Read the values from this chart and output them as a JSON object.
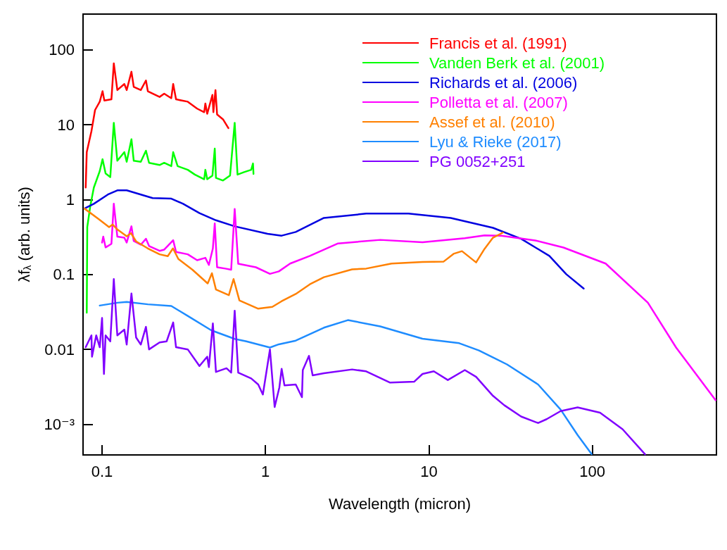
{
  "chart_data": {
    "type": "line",
    "xlabel": "Wavelength (micron)",
    "ylabel": "λf$_{λ}$ (arb. units)",
    "log": "xy",
    "grid": false,
    "legend": "top right",
    "marker": "none",
    "line_style": "solid",
    "xlim": [
      0.0765,
      575
    ],
    "ylim": [
      0.00039,
      300
    ],
    "xticks": [
      0.1,
      1,
      10,
      100
    ],
    "yticks": [
      {
        "value": 0.001,
        "label": "10⁻³"
      },
      0.01,
      0.1,
      1,
      10,
      100
    ],
    "series": [
      {
        "name": "Francis et al. (1991)",
        "color": "#ff0000",
        "x": [
          0.0794,
          0.0806,
          0.0861,
          0.0906,
          0.0968,
          0.1007,
          0.1033,
          0.1141,
          0.118,
          0.124,
          0.1369,
          0.1415,
          0.1513,
          0.1563,
          0.1726,
          0.1856,
          0.1906,
          0.2249,
          0.24,
          0.2653,
          0.2724,
          0.2836,
          0.3346,
          0.3818,
          0.4217,
          0.4287,
          0.44,
          0.4736,
          0.48,
          0.4943,
          0.5058,
          0.5496,
          0.593
        ],
        "values": [
          1.45,
          4.3,
          8.2,
          15.7,
          20.3,
          28,
          21,
          21.8,
          66,
          29,
          35,
          29,
          51,
          32,
          29,
          39,
          28,
          23.5,
          26,
          22.6,
          35,
          21.8,
          20.3,
          16.4,
          14.7,
          19.2,
          14,
          25,
          14.7,
          29,
          13.7,
          11.8,
          9
        ]
      },
      {
        "name": "Vanden Berk et al. (2001)",
        "color": "#00ff00",
        "x": [
          0.0806,
          0.0812,
          0.0847,
          0.0891,
          0.0968,
          0.1007,
          0.1051,
          0.1123,
          0.118,
          0.124,
          0.1369,
          0.1415,
          0.1513,
          0.1563,
          0.1726,
          0.1856,
          0.1939,
          0.2249,
          0.24,
          0.2653,
          0.2724,
          0.29,
          0.3346,
          0.3695,
          0.4217,
          0.4287,
          0.44,
          0.4736,
          0.4894,
          0.4977,
          0.5496,
          0.607,
          0.6481,
          0.6745,
          0.7403,
          0.8176,
          0.8388,
          0.8447
        ],
        "values": [
          0.031,
          0.43,
          0.82,
          1.45,
          2.4,
          3.46,
          2.24,
          2.0,
          10.6,
          3.3,
          4.3,
          3.2,
          6.4,
          3.3,
          3.2,
          4.5,
          3.1,
          2.9,
          3.1,
          2.8,
          4.3,
          2.8,
          2.5,
          2.16,
          1.87,
          2.5,
          1.87,
          2.09,
          4.8,
          1.95,
          1.8,
          2.1,
          10.6,
          2.16,
          2.33,
          2.5,
          3.04,
          2.2
        ]
      },
      {
        "name": "Richards et al. (2006)",
        "color": "#0000e0",
        "x": [
          0.078,
          0.0891,
          0.1086,
          0.124,
          0.1415,
          0.1726,
          0.2038,
          0.2653,
          0.3131,
          0.3945,
          0.4977,
          0.6481,
          1.03,
          1.256,
          1.532,
          2.279,
          4.134,
          7.5,
          13.6,
          24.66,
          36.7,
          54.6,
          69.3,
          88.6
        ],
        "values": [
          0.76,
          0.88,
          1.17,
          1.33,
          1.33,
          1.17,
          1.05,
          1.03,
          0.88,
          0.66,
          0.53,
          0.44,
          0.35,
          0.33,
          0.37,
          0.57,
          0.65,
          0.65,
          0.57,
          0.42,
          0.3,
          0.177,
          0.101,
          0.065
        ]
      },
      {
        "name": "Polletta et al. (2007)",
        "color": "#ff00ff",
        "x": [
          0.1,
          0.1017,
          0.1051,
          0.1141,
          0.118,
          0.124,
          0.1369,
          0.1415,
          0.1513,
          0.1563,
          0.1726,
          0.1856,
          0.1939,
          0.2249,
          0.2402,
          0.2724,
          0.2836,
          0.3346,
          0.3818,
          0.4287,
          0.4505,
          0.4765,
          0.4894,
          0.5058,
          0.5679,
          0.6167,
          0.6481,
          0.6811,
          0.873,
          1.065,
          1.207,
          1.416,
          1.869,
          2.78,
          5.042,
          9.14,
          16.59,
          21.9,
          27.8,
          44.8,
          66.6,
          120.7,
          218.9,
          325.7,
          568
        ],
        "values": [
          0.267,
          0.32,
          0.23,
          0.257,
          0.88,
          0.32,
          0.31,
          0.267,
          0.44,
          0.28,
          0.25,
          0.3,
          0.24,
          0.207,
          0.215,
          0.287,
          0.2,
          0.186,
          0.155,
          0.167,
          0.134,
          0.223,
          0.48,
          0.125,
          0.12,
          0.116,
          0.75,
          0.139,
          0.125,
          0.102,
          0.11,
          0.14,
          0.177,
          0.26,
          0.29,
          0.27,
          0.305,
          0.333,
          0.33,
          0.285,
          0.229,
          0.14,
          0.042,
          0.0106,
          0.0021
        ]
      },
      {
        "name": "Assef et al. (2010)",
        "color": "#ff8000",
        "x": [
          0.078,
          0.0952,
          0.1104,
          0.1161,
          0.124,
          0.1415,
          0.1503,
          0.1616,
          0.1906,
          0.2249,
          0.2524,
          0.2716,
          0.293,
          0.3573,
          0.443,
          0.4703,
          0.4977,
          0.5969,
          0.6379,
          0.6927,
          0.9029,
          1.101,
          1.256,
          1.532,
          1.869,
          2.279,
          3.389,
          4.134,
          5.91,
          9.14,
          12.32,
          14.16,
          15.94,
          19.45,
          21.9,
          24.66,
          28.36
        ],
        "values": [
          0.76,
          0.55,
          0.43,
          0.465,
          0.4,
          0.324,
          0.356,
          0.277,
          0.223,
          0.186,
          0.176,
          0.223,
          0.161,
          0.116,
          0.076,
          0.104,
          0.063,
          0.053,
          0.087,
          0.045,
          0.035,
          0.037,
          0.044,
          0.055,
          0.074,
          0.092,
          0.117,
          0.12,
          0.14,
          0.147,
          0.149,
          0.189,
          0.205,
          0.145,
          0.22,
          0.31,
          0.363
        ]
      },
      {
        "name": "Lyu & Rieke (2017)",
        "color": "#1e8cff",
        "x": [
          0.0968,
          0.124,
          0.1415,
          0.1906,
          0.2653,
          0.3346,
          0.4658,
          0.6481,
          0.7647,
          1.065,
          1.207,
          1.532,
          2.279,
          3.194,
          5.042,
          9.14,
          15.32,
          20.23,
          30.08,
          46.6,
          64,
          81.3,
          99
        ],
        "values": [
          0.0385,
          0.042,
          0.043,
          0.04,
          0.038,
          0.028,
          0.018,
          0.0138,
          0.0128,
          0.0106,
          0.0117,
          0.0131,
          0.0195,
          0.0246,
          0.0203,
          0.0139,
          0.0121,
          0.0097,
          0.0063,
          0.0034,
          0.00157,
          0.00072,
          0.0004
        ]
      },
      {
        "name": "PG 0052+251",
        "color": "#8000ff",
        "x": [
          0.0794,
          0.0861,
          0.0868,
          0.0921,
          0.0968,
          0.1,
          0.1027,
          0.1051,
          0.1123,
          0.118,
          0.124,
          0.1369,
          0.1415,
          0.1513,
          0.1616,
          0.1726,
          0.1856,
          0.1939,
          0.2249,
          0.2484,
          0.2724,
          0.2836,
          0.3346,
          0.3945,
          0.44,
          0.4505,
          0.4765,
          0.4977,
          0.5776,
          0.6167,
          0.6481,
          0.6811,
          0.8176,
          0.9029,
          0.9639,
          1.065,
          1.138,
          1.216,
          1.256,
          1.307,
          1.532,
          1.672,
          1.692,
          1.846,
          1.944,
          2.279,
          3.389,
          4.134,
          5.794,
          8.12,
          9.14,
          10.72,
          13.06,
          16.59,
          19.45,
          24.66,
          28.91,
          36.7,
          46.6,
          52.5,
          64,
          81.3,
          111.5,
          153.2,
          210.4
        ],
        "values": [
          0.0107,
          0.0154,
          0.008,
          0.0154,
          0.0107,
          0.0263,
          0.0047,
          0.0154,
          0.0128,
          0.087,
          0.0154,
          0.0184,
          0.0116,
          0.0557,
          0.0144,
          0.0116,
          0.02,
          0.01,
          0.0124,
          0.0128,
          0.0229,
          0.0107,
          0.01,
          0.006,
          0.008,
          0.0058,
          0.0222,
          0.005,
          0.0056,
          0.0049,
          0.0329,
          0.0049,
          0.0041,
          0.0034,
          0.0025,
          0.01,
          0.0017,
          0.0031,
          0.0055,
          0.0033,
          0.0034,
          0.0023,
          0.0053,
          0.0082,
          0.0045,
          0.0048,
          0.0054,
          0.0051,
          0.0036,
          0.0037,
          0.0047,
          0.0051,
          0.0039,
          0.0053,
          0.0043,
          0.0024,
          0.0018,
          0.00127,
          0.00104,
          0.00117,
          0.0015,
          0.00168,
          0.00143,
          0.00086,
          0.000398
        ]
      }
    ]
  }
}
